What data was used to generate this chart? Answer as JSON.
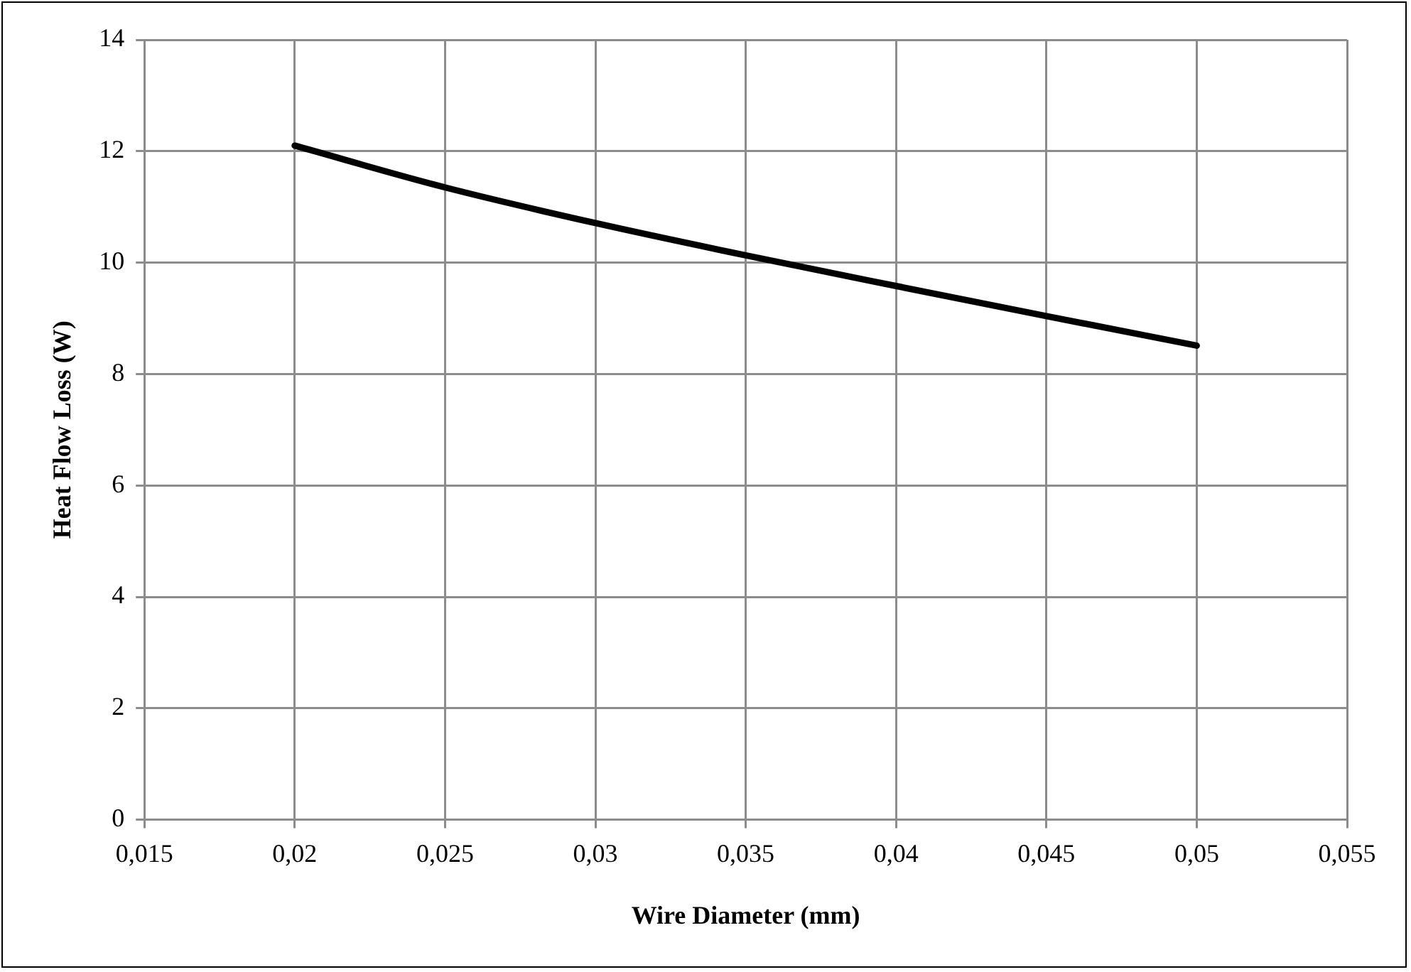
{
  "chart_data": {
    "type": "line",
    "xlabel": "Wire Diameter (mm)",
    "ylabel": "Heat Flow Loss (W)",
    "x": [
      0.02,
      0.025,
      0.03,
      0.035,
      0.04,
      0.045,
      0.05
    ],
    "series": [
      {
        "color": "#000000",
        "values": [
          12.1,
          11.35,
          10.71,
          10.13,
          9.58,
          9.04,
          8.51
        ]
      }
    ],
    "xlim": [
      0.015,
      0.055
    ],
    "xticks": [
      {
        "value": 0.015,
        "label": "0,015"
      },
      {
        "value": 0.02,
        "label": "0,02"
      },
      {
        "value": 0.025,
        "label": "0,025"
      },
      {
        "value": 0.03,
        "label": "0,03"
      },
      {
        "value": 0.035,
        "label": "0,035"
      },
      {
        "value": 0.04,
        "label": "0,04"
      },
      {
        "value": 0.045,
        "label": "0,045"
      },
      {
        "value": 0.05,
        "label": "0,05"
      },
      {
        "value": 0.055,
        "label": "0,055"
      }
    ],
    "ylim": [
      0,
      14
    ],
    "yticks": [
      0,
      2,
      4,
      6,
      8,
      10,
      12,
      14
    ],
    "grid": true,
    "legend": false,
    "marker": "none",
    "line_style": "solid"
  }
}
